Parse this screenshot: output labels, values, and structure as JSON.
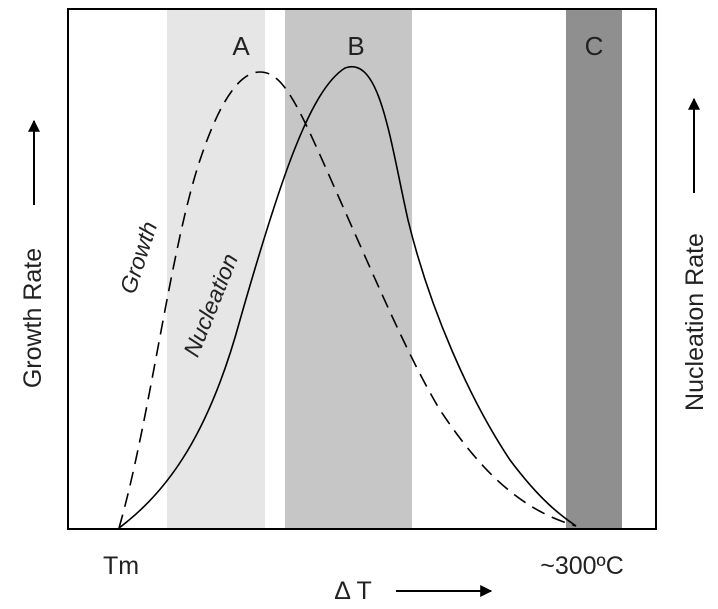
{
  "diagram": {
    "zones": [
      {
        "label": "A",
        "color": "#e6e6e6"
      },
      {
        "label": "B",
        "color": "#c6c6c6"
      },
      {
        "label": "C",
        "color": "#8f8f8f"
      }
    ],
    "curves": {
      "growth_label": "Growth",
      "nucleation_label": "Nucleation"
    },
    "axes": {
      "left_label": "Growth Rate",
      "right_label": "Nucleation Rate",
      "x_label": "Δ T",
      "x_start_tick": "Tm",
      "x_end_tick": "~300ºC"
    },
    "colors": {
      "frame": "#000000",
      "curve": "#000000",
      "text": "#222222"
    }
  }
}
